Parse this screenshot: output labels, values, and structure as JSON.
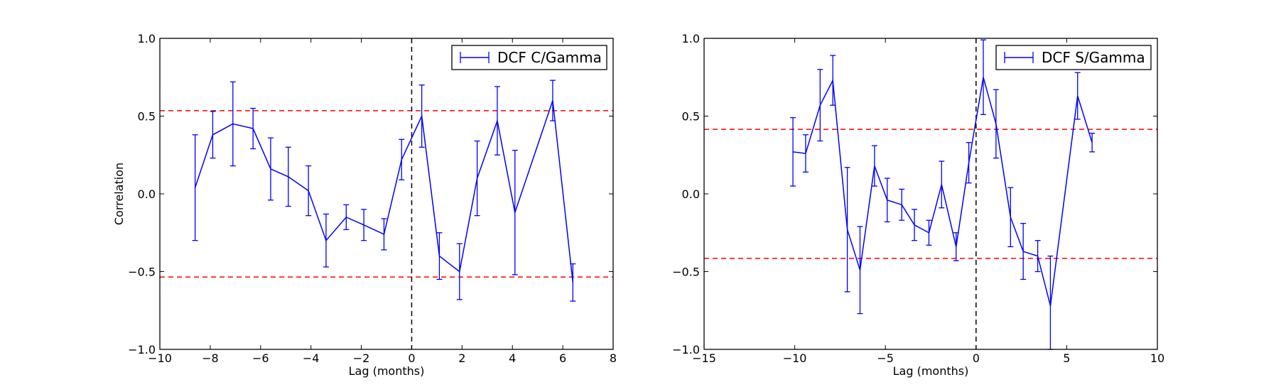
{
  "chart_data": [
    {
      "type": "line",
      "xlabel": "Lag (months)",
      "ylabel": "Correlation",
      "xlim": [
        -10,
        8
      ],
      "ylim": [
        -1.0,
        1.0
      ],
      "xticks": [
        -10,
        -8,
        -6,
        -4,
        -2,
        0,
        2,
        4,
        6,
        8
      ],
      "yticks": [
        -1.0,
        -0.5,
        0.0,
        0.5,
        1.0
      ],
      "xtick_labels": [
        "−10",
        "−8",
        "−6",
        "−4",
        "−2",
        "0",
        "2",
        "4",
        "6",
        "8"
      ],
      "ytick_labels": [
        "−1.0",
        "−0.5",
        "0.0",
        "0.5",
        "1.0"
      ],
      "legend_position": "top-right",
      "grid": false,
      "reference_lines": {
        "horizontal": [
          0.535,
          -0.535
        ],
        "horizontal_color": "#ff0000",
        "vertical": [
          0
        ],
        "vertical_color": "#000000"
      },
      "series": [
        {
          "name": "DCF C/Gamma",
          "color": "#0000ff",
          "points": [
            {
              "x": -8.6,
              "y": 0.04,
              "err": 0.34
            },
            {
              "x": -7.9,
              "y": 0.38,
              "err": 0.15
            },
            {
              "x": -7.1,
              "y": 0.45,
              "err": 0.27
            },
            {
              "x": -6.3,
              "y": 0.42,
              "err": 0.13
            },
            {
              "x": -5.6,
              "y": 0.16,
              "err": 0.2
            },
            {
              "x": -4.9,
              "y": 0.11,
              "err": 0.19
            },
            {
              "x": -4.1,
              "y": 0.02,
              "err": 0.16
            },
            {
              "x": -3.4,
              "y": -0.3,
              "err": 0.17
            },
            {
              "x": -2.6,
              "y": -0.15,
              "err": 0.08
            },
            {
              "x": -1.9,
              "y": -0.2,
              "err": 0.1
            },
            {
              "x": -1.1,
              "y": -0.26,
              "err": 0.1
            },
            {
              "x": -0.4,
              "y": 0.22,
              "err": 0.13
            },
            {
              "x": 0.4,
              "y": 0.5,
              "err": 0.2
            },
            {
              "x": 1.1,
              "y": -0.4,
              "err": 0.15
            },
            {
              "x": 1.9,
              "y": -0.5,
              "err": 0.18
            },
            {
              "x": 2.6,
              "y": 0.1,
              "err": 0.24
            },
            {
              "x": 3.4,
              "y": 0.47,
              "err": 0.22
            },
            {
              "x": 4.1,
              "y": -0.12,
              "err": 0.4
            },
            {
              "x": 5.6,
              "y": 0.6,
              "err": 0.13
            },
            {
              "x": 6.4,
              "y": -0.57,
              "err": 0.12
            }
          ]
        }
      ]
    },
    {
      "type": "line",
      "xlabel": "Lag (months)",
      "ylabel": "",
      "xlim": [
        -15,
        10
      ],
      "ylim": [
        -1.0,
        1.0
      ],
      "xticks": [
        -15,
        -10,
        -5,
        0,
        5,
        10
      ],
      "yticks": [
        -1.0,
        -0.5,
        0.0,
        0.5,
        1.0
      ],
      "xtick_labels": [
        "−15",
        "−10",
        "−5",
        "0",
        "5",
        "10"
      ],
      "ytick_labels": [
        "−1.0",
        "−0.5",
        "0.0",
        "0.5",
        "1.0"
      ],
      "legend_position": "top-right",
      "grid": false,
      "reference_lines": {
        "horizontal": [
          0.415,
          -0.415
        ],
        "horizontal_color": "#ff0000",
        "vertical": [
          0
        ],
        "vertical_color": "#000000"
      },
      "series": [
        {
          "name": "DCF S/Gamma",
          "color": "#0000ff",
          "points": [
            {
              "x": -10.1,
              "y": 0.27,
              "err": 0.22
            },
            {
              "x": -9.4,
              "y": 0.26,
              "err": 0.12
            },
            {
              "x": -8.6,
              "y": 0.57,
              "err": 0.23
            },
            {
              "x": -7.9,
              "y": 0.73,
              "err": 0.16
            },
            {
              "x": -7.1,
              "y": -0.23,
              "err": 0.4
            },
            {
              "x": -6.4,
              "y": -0.49,
              "err": 0.28
            },
            {
              "x": -5.6,
              "y": 0.18,
              "err": 0.13
            },
            {
              "x": -4.9,
              "y": -0.04,
              "err": 0.14
            },
            {
              "x": -4.1,
              "y": -0.07,
              "err": 0.1
            },
            {
              "x": -3.4,
              "y": -0.2,
              "err": 0.1
            },
            {
              "x": -2.6,
              "y": -0.25,
              "err": 0.08
            },
            {
              "x": -1.9,
              "y": 0.06,
              "err": 0.15
            },
            {
              "x": -1.1,
              "y": -0.34,
              "err": 0.09
            },
            {
              "x": -0.4,
              "y": 0.2,
              "err": 0.13
            },
            {
              "x": 0.4,
              "y": 0.75,
              "err": 0.24
            },
            {
              "x": 1.1,
              "y": 0.45,
              "err": 0.22
            },
            {
              "x": 1.9,
              "y": -0.15,
              "err": 0.19
            },
            {
              "x": 2.6,
              "y": -0.37,
              "err": 0.18
            },
            {
              "x": 3.4,
              "y": -0.4,
              "err": 0.1
            },
            {
              "x": 4.1,
              "y": -0.72,
              "err": 0.32
            },
            {
              "x": 5.6,
              "y": 0.63,
              "err": 0.15
            },
            {
              "x": 6.4,
              "y": 0.33,
              "err": 0.06
            }
          ]
        }
      ]
    }
  ]
}
